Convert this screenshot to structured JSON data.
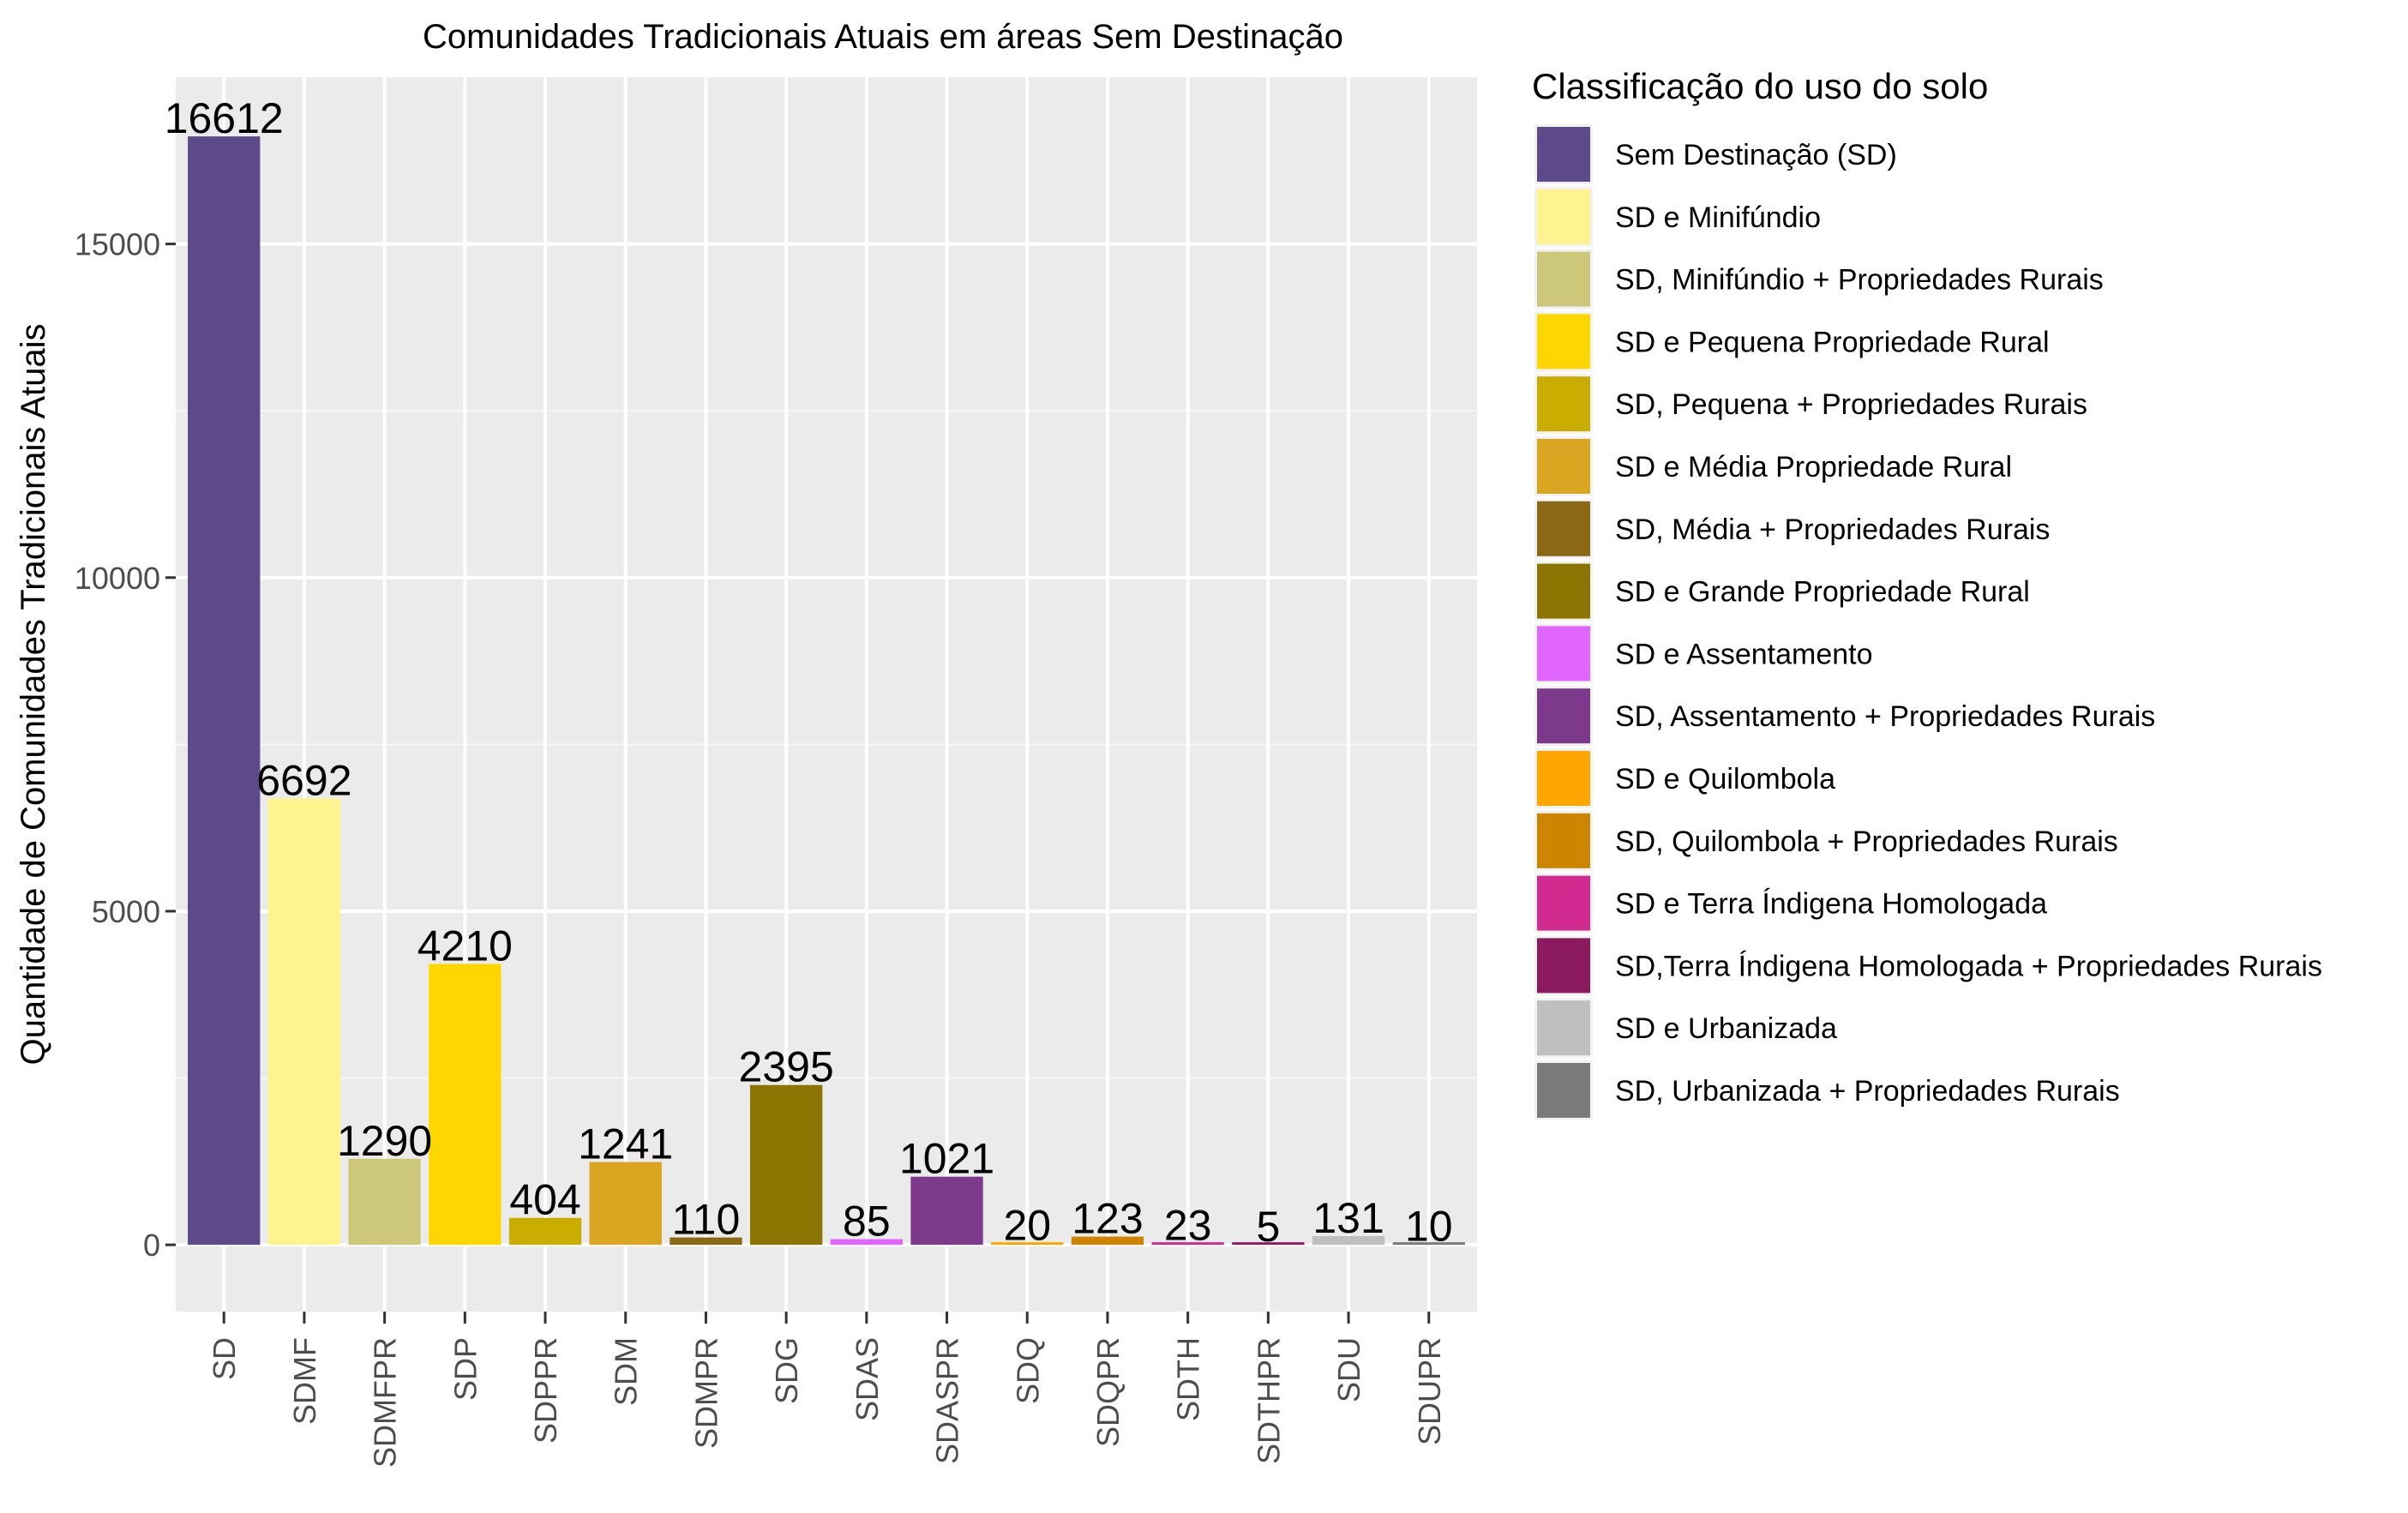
{
  "chart_data": {
    "type": "bar",
    "title": "Comunidades Tradicionais Atuais em áreas Sem Destinação",
    "xlabel": "",
    "ylabel": "Quantidade de Comunidades Tradicionais Atuais",
    "ylim": [
      -1000,
      17500
    ],
    "yticks": [
      0,
      5000,
      10000,
      15000
    ],
    "grid": true,
    "categories": [
      "SD",
      "SDMF",
      "SDMFPR",
      "SDP",
      "SDPPR",
      "SDM",
      "SDMPR",
      "SDG",
      "SDAS",
      "SDASPR",
      "SDQ",
      "SDQPR",
      "SDTH",
      "SDTHPR",
      "SDU",
      "SDUPR"
    ],
    "values": [
      16612,
      6692,
      1290,
      4210,
      404,
      1241,
      110,
      2395,
      85,
      1021,
      20,
      123,
      23,
      5,
      131,
      10
    ],
    "data_labels": [
      "16612",
      "6692",
      "1290",
      "4210",
      "404",
      "1241",
      "110",
      "2395",
      "85",
      "1021",
      "20",
      "123",
      "23",
      "5",
      "131",
      "10"
    ],
    "colors": [
      "#5c4a8a",
      "#fff38f",
      "#cdc77a",
      "#ffd700",
      "#c9ad00",
      "#daa520",
      "#8b6914",
      "#8b7500",
      "#e066ff",
      "#7d3a8c",
      "#ffa500",
      "#cd8500",
      "#d22b8f",
      "#8b1a5e",
      "#bfbfbf",
      "#7a7a7a"
    ],
    "legend": {
      "title": "Classificação do uso do solo",
      "position": "right",
      "entries": [
        "Sem Destinação (SD)",
        "SD e Minifúndio",
        "SD, Minifúndio + Propriedades Rurais",
        "SD e Pequena Propriedade Rural",
        "SD, Pequena + Propriedades Rurais",
        "SD e Média Propriedade Rural",
        "SD, Média + Propriedades Rurais",
        "SD e Grande Propriedade Rural",
        "SD e Assentamento",
        "SD, Assentamento  + Propriedades Rurais",
        "SD e Quilombola",
        "SD, Quilombola  + Propriedades Rurais",
        "SD e Terra Índigena Homologada",
        "SD,Terra Índigena Homologada  + Propriedades Rurais",
        "SD e Urbanizada",
        "SD, Urbanizada + Propriedades Rurais"
      ]
    }
  }
}
